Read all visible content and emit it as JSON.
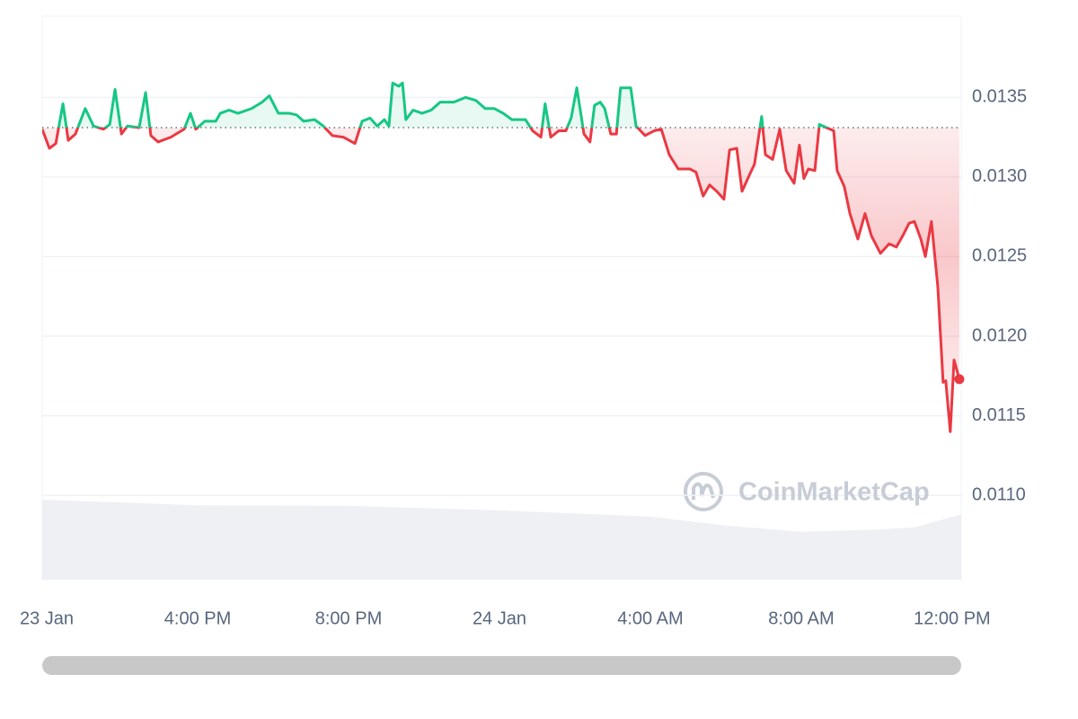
{
  "chart_data": {
    "type": "line",
    "watermark": "CoinMarketCap",
    "x": [
      -0.12,
      0.07,
      0.24,
      0.43,
      0.57,
      0.76,
      1.02,
      1.24,
      1.5,
      1.67,
      1.81,
      1.98,
      2.14,
      2.45,
      2.62,
      2.76,
      2.95,
      3.29,
      3.64,
      3.81,
      3.95,
      4.19,
      4.48,
      4.6,
      4.83,
      5.07,
      5.43,
      5.71,
      5.9,
      6.14,
      6.43,
      6.62,
      6.81,
      7.1,
      7.33,
      7.57,
      7.86,
      8.17,
      8.36,
      8.57,
      8.76,
      8.95,
      9.07,
      9.17,
      9.33,
      9.43,
      9.52,
      9.71,
      9.95,
      10.19,
      10.43,
      10.79,
      11.1,
      11.38,
      11.62,
      11.86,
      12.1,
      12.33,
      12.69,
      12.88,
      13.1,
      13.21,
      13.36,
      13.57,
      13.76,
      13.9,
      14.05,
      14.24,
      14.4,
      14.52,
      14.67,
      14.79,
      14.95,
      15.1,
      15.21,
      15.48,
      15.62,
      15.86,
      16.1,
      16.29,
      16.5,
      16.74,
      17.05,
      17.21,
      17.4,
      17.57,
      17.76,
      17.95,
      18.1,
      18.29,
      18.43,
      18.64,
      18.76,
      18.95,
      19.05,
      19.24,
      19.43,
      19.6,
      19.81,
      19.95,
      20.07,
      20.19,
      20.36,
      20.48,
      20.67,
      20.86,
      20.95,
      21.14,
      21.29,
      21.5,
      21.69,
      21.86,
      22.1,
      22.33,
      22.52,
      22.69,
      22.86,
      23,
      23.17,
      23.29,
      23.45,
      23.62,
      23.76,
      23.83,
      23.95,
      24.05,
      24.19
    ],
    "values": [
      0.0133,
      0.01318,
      0.01321,
      0.01346,
      0.01323,
      0.01327,
      0.01343,
      0.01332,
      0.0133,
      0.01333,
      0.01355,
      0.01327,
      0.01332,
      0.01331,
      0.01353,
      0.01326,
      0.01322,
      0.01325,
      0.0133,
      0.0134,
      0.0133,
      0.01335,
      0.01335,
      0.0134,
      0.01342,
      0.0134,
      0.01343,
      0.01347,
      0.01351,
      0.0134,
      0.0134,
      0.01339,
      0.01335,
      0.01336,
      0.01332,
      0.01326,
      0.01325,
      0.01321,
      0.01335,
      0.01337,
      0.01332,
      0.01336,
      0.01332,
      0.01359,
      0.01357,
      0.01359,
      0.01336,
      0.01342,
      0.0134,
      0.01342,
      0.01347,
      0.01347,
      0.0135,
      0.01348,
      0.01343,
      0.01343,
      0.0134,
      0.01336,
      0.01336,
      0.01329,
      0.01325,
      0.01346,
      0.01325,
      0.01329,
      0.01329,
      0.01337,
      0.01356,
      0.01327,
      0.01322,
      0.01345,
      0.01347,
      0.01343,
      0.01327,
      0.01327,
      0.01356,
      0.01356,
      0.01332,
      0.01326,
      0.01329,
      0.0133,
      0.01314,
      0.01305,
      0.01305,
      0.01303,
      0.01288,
      0.01295,
      0.01291,
      0.01286,
      0.01317,
      0.01318,
      0.01291,
      0.01302,
      0.01308,
      0.01338,
      0.01314,
      0.01311,
      0.0133,
      0.01304,
      0.01296,
      0.0132,
      0.01299,
      0.01305,
      0.01304,
      0.01333,
      0.01331,
      0.01329,
      0.01304,
      0.01294,
      0.01277,
      0.01261,
      0.01277,
      0.01263,
      0.01252,
      0.01258,
      0.01256,
      0.01263,
      0.01271,
      0.01272,
      0.01261,
      0.0125,
      0.01272,
      0.01231,
      0.01171,
      0.01172,
      0.0114,
      0.01185,
      0.01173
    ],
    "reference": 0.01331,
    "up_color": "#16c784",
    "down_color": "#ea3943",
    "volume": {
      "axis": "y2",
      "color": "#eef0f4",
      "x": [
        -0.12,
        4,
        8,
        12,
        16,
        18,
        20,
        22,
        23,
        24.24
      ],
      "values": [
        14.2,
        13.2,
        13.1,
        12.3,
        11.2,
        9.6,
        8.5,
        8.9,
        9.3,
        11.6
      ]
    },
    "y2lim": [
      0,
      100
    ],
    "xlim": [
      -0.12,
      24.24
    ],
    "xticks": [
      {
        "value": 0,
        "label": "23 Jan"
      },
      {
        "value": 4,
        "label": "4:00 PM"
      },
      {
        "value": 8,
        "label": "8:00 PM"
      },
      {
        "value": 12,
        "label": "24 Jan"
      },
      {
        "value": 16,
        "label": "4:00 AM"
      },
      {
        "value": 20,
        "label": "8:00 AM"
      },
      {
        "value": 24,
        "label": "12:00 PM"
      }
    ],
    "ylim": [
      0.01047,
      0.01401
    ],
    "yticks": [
      {
        "value": 0.011,
        "label": "0.0110"
      },
      {
        "value": 0.0115,
        "label": "0.0115"
      },
      {
        "value": 0.012,
        "label": "0.0120"
      },
      {
        "value": 0.0125,
        "label": "0.0125"
      },
      {
        "value": 0.013,
        "label": "0.0130"
      },
      {
        "value": 0.0135,
        "label": "0.0135"
      }
    ],
    "grid": true
  }
}
